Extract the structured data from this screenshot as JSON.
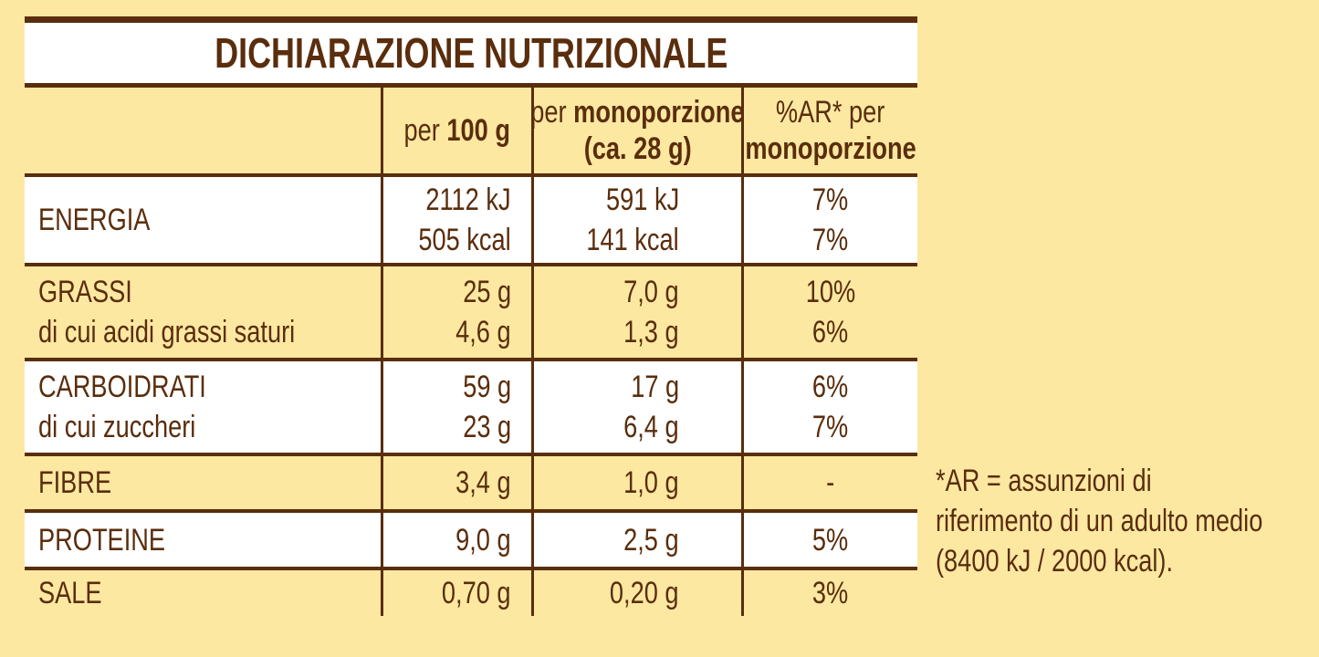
{
  "title": "DICHIARAZIONE NUTRIZIONALE",
  "colors": {
    "brown": "#5a2d0c",
    "cream": "#fde8a2",
    "white": "#ffffff"
  },
  "header": {
    "per100_prefix": "per ",
    "per100_bold": "100 g",
    "mono_prefix": "per ",
    "mono_bold": "monoporzione",
    "mono_line2": "(ca. 28 g)",
    "ar_line1": "%AR* per",
    "ar_line2": "monoporzione"
  },
  "rows": [
    {
      "shade": "white",
      "label": [
        "ENERGIA"
      ],
      "per100": [
        "2112 kJ",
        "505 kcal"
      ],
      "mono": [
        "591 kJ",
        "141 kcal"
      ],
      "ar": [
        "7%",
        "7%"
      ]
    },
    {
      "shade": "cream",
      "label": [
        "GRASSI",
        "di cui acidi grassi saturi"
      ],
      "per100": [
        "25 g",
        "4,6 g"
      ],
      "mono": [
        "7,0 g",
        "1,3 g"
      ],
      "ar": [
        "10%",
        "6%"
      ]
    },
    {
      "shade": "white",
      "label": [
        "CARBOIDRATI",
        "di cui zuccheri"
      ],
      "per100": [
        "59 g",
        "23 g"
      ],
      "mono": [
        "17 g",
        "6,4 g"
      ],
      "ar": [
        "6%",
        "7%"
      ]
    },
    {
      "shade": "cream",
      "label": [
        "FIBRE"
      ],
      "per100": [
        "3,4 g"
      ],
      "mono": [
        "1,0 g"
      ],
      "ar": [
        "-"
      ]
    },
    {
      "shade": "white",
      "label": [
        "PROTEINE"
      ],
      "per100": [
        "9,0 g"
      ],
      "mono": [
        "2,5 g"
      ],
      "ar": [
        "5%"
      ]
    },
    {
      "shade": "cream",
      "label": [
        "SALE"
      ],
      "per100": [
        "0,70 g"
      ],
      "mono": [
        "0,20 g"
      ],
      "ar": [
        "3%"
      ]
    }
  ],
  "footnote": [
    "*AR = assunzioni di",
    "riferimento di un adulto medio",
    "(8400 kJ / 2000 kcal)."
  ]
}
